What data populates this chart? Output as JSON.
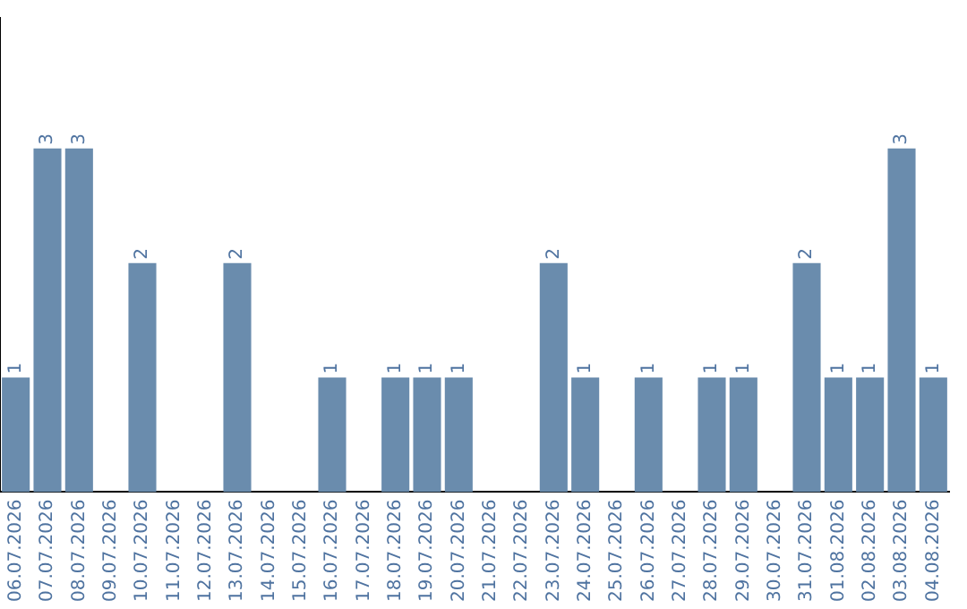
{
  "chart_data": {
    "type": "bar",
    "categories": [
      "06.07.2026",
      "07.07.2026",
      "08.07.2026",
      "09.07.2026",
      "10.07.2026",
      "11.07.2026",
      "12.07.2026",
      "13.07.2026",
      "14.07.2026",
      "15.07.2026",
      "16.07.2026",
      "17.07.2026",
      "18.07.2026",
      "19.07.2026",
      "20.07.2026",
      "21.07.2026",
      "22.07.2026",
      "23.07.2026",
      "24.07.2026",
      "25.07.2026",
      "26.07.2026",
      "27.07.2026",
      "28.07.2026",
      "29.07.2026",
      "30.07.2026",
      "31.07.2026",
      "01.08.2026",
      "02.08.2026",
      "03.08.2026",
      "04.08.2026"
    ],
    "values": [
      1,
      3,
      3,
      0,
      2,
      0,
      0,
      2,
      0,
      0,
      1,
      0,
      1,
      1,
      1,
      0,
      0,
      2,
      1,
      0,
      1,
      0,
      1,
      1,
      0,
      2,
      1,
      1,
      3,
      1
    ],
    "value_labels": [
      "1",
      "3",
      "3",
      null,
      "2",
      null,
      null,
      "2",
      null,
      null,
      "1",
      null,
      "1",
      "1",
      "1",
      null,
      null,
      "2",
      "1",
      null,
      "1",
      null,
      "1",
      "1",
      null,
      "2",
      "1",
      "1",
      "3",
      "1"
    ],
    "color": "#6a8cad",
    "tick_labels": "x",
    "grid": false,
    "legend": false
  }
}
